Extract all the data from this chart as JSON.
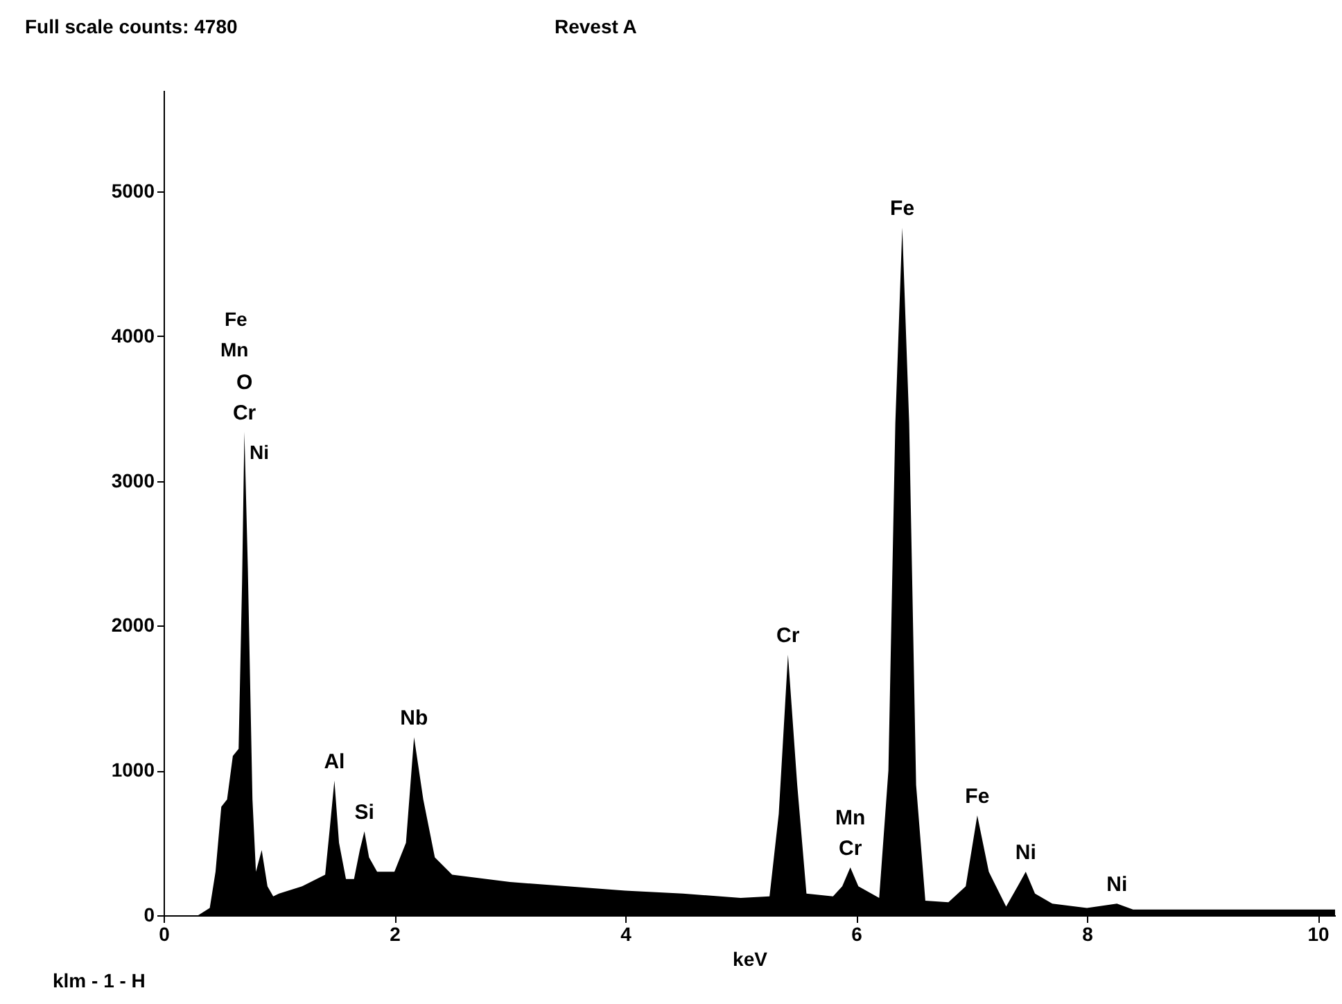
{
  "chart_data": {
    "type": "area",
    "title": "Revest A",
    "xlabel": "keV",
    "annotations": [
      "Full scale counts: 4780",
      "klm - 1 - H",
      "Ni",
      "Mn",
      "Fe",
      {
        "text": "Cr",
        "x": 0.7,
        "y": 3340
      },
      {
        "text": "O",
        "x": 0.7,
        "y": 3340
      },
      {
        "text": "Al",
        "x": 1.48,
        "y": 930
      },
      {
        "text": "Si",
        "x": 1.74,
        "y": 580
      },
      {
        "text": "Nb",
        "x": 2.17,
        "y": 1230
      },
      {
        "text": "Cr",
        "x": 5.41,
        "y": 1800
      },
      {
        "text": "Cr",
        "x": 5.95,
        "y": 330
      },
      {
        "text": "Mn",
        "x": 5.95,
        "y": 330
      },
      {
        "text": "Fe",
        "x": 6.4,
        "y": 4750
      },
      {
        "text": "Fe",
        "x": 7.05,
        "y": 690
      },
      {
        "text": "Ni",
        "x": 7.47,
        "y": 300
      },
      {
        "text": "Ni",
        "x": 8.26,
        "y": 80
      }
    ],
    "x": [
      0,
      0.3,
      0.4,
      0.45,
      0.5,
      0.55,
      0.6,
      0.65,
      0.68,
      0.7,
      0.73,
      0.77,
      0.8,
      0.85,
      0.9,
      0.95,
      1.0,
      1.2,
      1.4,
      1.44,
      1.48,
      1.52,
      1.58,
      1.65,
      1.7,
      1.74,
      1.78,
      1.85,
      2.0,
      2.1,
      2.17,
      2.25,
      2.35,
      2.5,
      3.0,
      3.5,
      4.0,
      4.5,
      5.0,
      5.25,
      5.33,
      5.41,
      5.49,
      5.57,
      5.8,
      5.88,
      5.95,
      6.02,
      6.2,
      6.28,
      6.34,
      6.4,
      6.46,
      6.52,
      6.6,
      6.8,
      6.95,
      7.05,
      7.15,
      7.3,
      7.4,
      7.47,
      7.55,
      7.7,
      8.0,
      8.26,
      8.4,
      8.5,
      10.15
    ],
    "series": [
      {
        "color": "#000000",
        "values": [
          0,
          0,
          50,
          300,
          750,
          800,
          1100,
          1150,
          2300,
          3340,
          2400,
          800,
          300,
          450,
          200,
          130,
          150,
          200,
          280,
          600,
          930,
          500,
          250,
          250,
          450,
          580,
          400,
          300,
          300,
          500,
          1230,
          800,
          400,
          280,
          230,
          200,
          170,
          150,
          120,
          130,
          700,
          1800,
          900,
          150,
          130,
          200,
          330,
          200,
          120,
          1000,
          3400,
          4750,
          3400,
          900,
          100,
          90,
          200,
          690,
          300,
          60,
          200,
          300,
          150,
          80,
          50,
          80,
          40,
          40,
          40
        ]
      }
    ],
    "xlim": [
      0,
      10.15
    ],
    "ylim": [
      0,
      5700
    ],
    "xticks": [
      0,
      2,
      4,
      6,
      8,
      10
    ],
    "yticks": [
      0,
      1000,
      2000,
      3000,
      4000,
      5000
    ],
    "grid": false
  }
}
